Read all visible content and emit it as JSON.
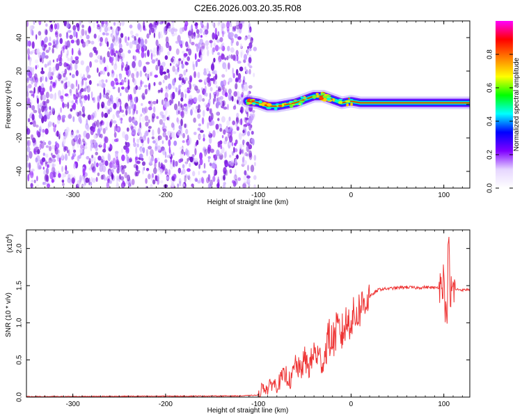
{
  "title": "C2E6.2026.003.20.35.R08",
  "chart_data": [
    {
      "type": "heatmap",
      "xlabel": "Height of straight line (km)",
      "ylabel": "Frequency (Hz)",
      "xlim": [
        -350,
        128
      ],
      "ylim": [
        -50,
        50
      ],
      "xticks": [
        -300,
        -200,
        -100,
        0,
        100
      ],
      "yticks": [
        -40,
        -20,
        0,
        20,
        40
      ],
      "xtick_labels": [
        "-300",
        "-200",
        "-100",
        "0",
        "100"
      ],
      "ytick_labels": [
        "-40",
        "-20",
        "0",
        "20",
        "40"
      ],
      "noise_region": [
        -350,
        -108
      ],
      "signal_track": {
        "x": [
          -112,
          -100,
          -90,
          -80,
          -70,
          -60,
          -50,
          -40,
          -30,
          -20,
          -10,
          0,
          10,
          20,
          40,
          60,
          80,
          95,
          100,
          128
        ],
        "y": [
          2,
          1,
          -1,
          -1,
          0,
          1,
          3,
          5,
          5,
          3,
          1,
          2,
          1,
          1,
          1,
          1,
          1,
          1,
          1,
          1
        ]
      },
      "colorbar": {
        "label": "Normalized spectral amplitude",
        "range": [
          0,
          1
        ],
        "ticks": [
          0.0,
          0.2,
          0.4,
          0.6,
          0.8
        ],
        "tick_labels": [
          "0.0",
          "0.2",
          "0.4",
          "0.6",
          "0.8"
        ],
        "colors": [
          "#ffffff",
          "#e6d6ff",
          "#8000ff",
          "#0000ff",
          "#00ffff",
          "#00ff00",
          "#ffff00",
          "#ff8000",
          "#ff0000",
          "#ff00ff"
        ]
      }
    },
    {
      "type": "line",
      "xlabel": "Height of straight line (km)",
      "ylabel": "SNR (10 * v/v)",
      "multiplier_label": "(x10",
      "multiplier_exp": "4",
      "multiplier_close": ")",
      "xlim": [
        -350,
        128
      ],
      "ylim": [
        0,
        2.25
      ],
      "xticks": [
        -300,
        -200,
        -100,
        0,
        100
      ],
      "yticks": [
        0.0,
        0.5,
        1.0,
        1.5,
        2.0
      ],
      "xtick_labels": [
        "-300",
        "-200",
        "-100",
        "0",
        "100"
      ],
      "ytick_labels": [
        "0.0",
        "0.5",
        "1.0",
        "1.5",
        "2.0"
      ],
      "color": "#ee3333",
      "series": [
        {
          "x": [
            -350,
            -120,
            -100,
            -95,
            -90,
            -85,
            -80,
            -75,
            -70,
            -65,
            -60,
            -55,
            -50,
            -45,
            -40,
            -35,
            -30,
            -25,
            -20,
            -15,
            -10,
            -5,
            0,
            5,
            10,
            15,
            20,
            25,
            30,
            40,
            50,
            60,
            70,
            80,
            90,
            95,
            100,
            103,
            105,
            107,
            108,
            110,
            115,
            120,
            128
          ],
          "y": [
            0.0,
            0.01,
            0.02,
            0.15,
            0.1,
            0.2,
            0.15,
            0.25,
            0.3,
            0.2,
            0.45,
            0.35,
            0.5,
            0.4,
            0.6,
            0.55,
            0.45,
            0.8,
            0.75,
            0.9,
            0.85,
            1.0,
            1.05,
            1.1,
            1.2,
            1.3,
            1.35,
            1.4,
            1.45,
            1.46,
            1.47,
            1.48,
            1.47,
            1.48,
            1.47,
            1.48,
            1.6,
            0.9,
            2.2,
            1.2,
            1.45,
            1.44,
            1.45,
            1.44,
            1.45
          ]
        }
      ]
    }
  ]
}
